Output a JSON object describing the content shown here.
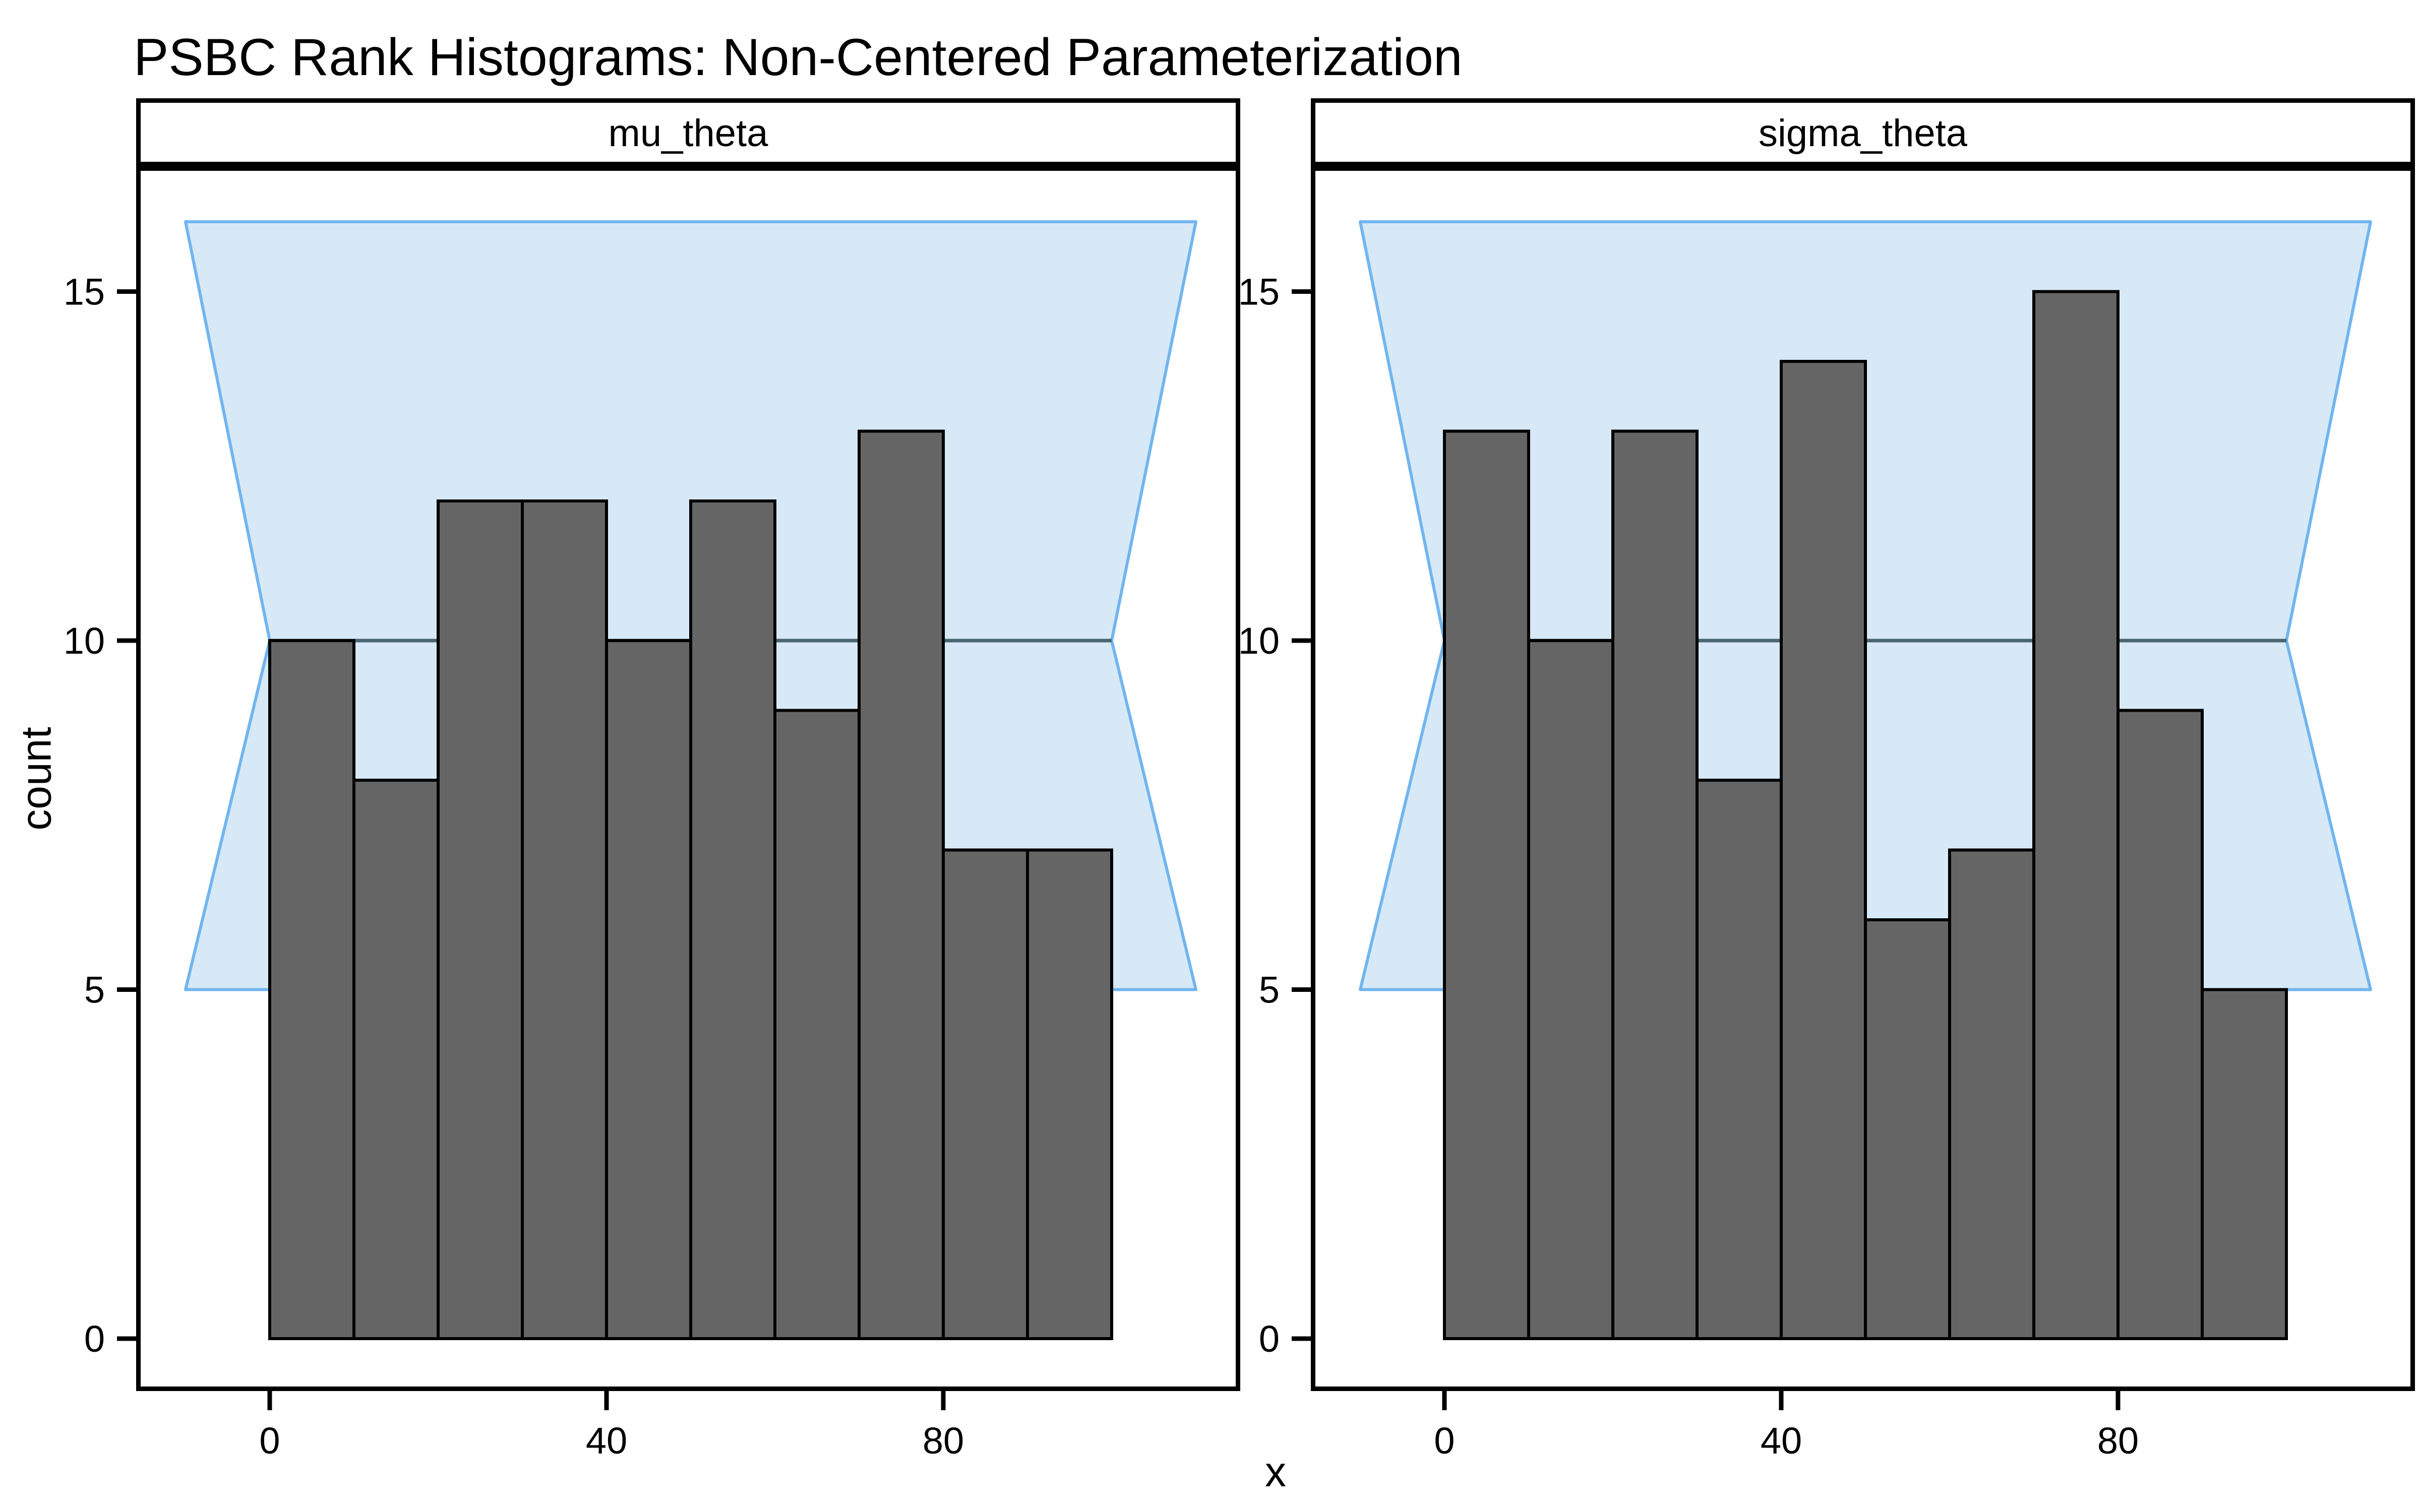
{
  "title": "PSBC Rank Histograms: Non-Centered Parameterization",
  "axes": {
    "x_title": "x",
    "y_title": "count",
    "x_ticks": [
      "0",
      "40",
      "80"
    ],
    "x_tick_values": [
      0,
      40,
      80
    ],
    "y_ticks": [
      "0",
      "5",
      "10",
      "15"
    ],
    "y_tick_values": [
      0,
      5,
      10,
      15
    ]
  },
  "chart_data": [
    {
      "type": "bar",
      "facet": "mu_theta",
      "bin_width": 10,
      "bin_starts": [
        0,
        10,
        20,
        30,
        40,
        50,
        60,
        70,
        80,
        90
      ],
      "counts": [
        10,
        8,
        12,
        12,
        10,
        12,
        9,
        13,
        7,
        7
      ],
      "x_range": [
        0,
        100
      ],
      "ylim": [
        0,
        16.8
      ],
      "band": {
        "upper": 16,
        "mid": 10,
        "lower": 5,
        "x_outer": [
          -10,
          110
        ],
        "x_inner": [
          0,
          100
        ]
      }
    },
    {
      "type": "bar",
      "facet": "sigma_theta",
      "bin_width": 10,
      "bin_starts": [
        0,
        10,
        20,
        30,
        40,
        50,
        60,
        70,
        80,
        90
      ],
      "counts": [
        13,
        10,
        13,
        8,
        14,
        6,
        7,
        15,
        9,
        5
      ],
      "x_range": [
        0,
        100
      ],
      "ylim": [
        0,
        16.8
      ],
      "band": {
        "upper": 16,
        "mid": 10,
        "lower": 5,
        "x_outer": [
          -10,
          110
        ],
        "x_inner": [
          0,
          100
        ]
      }
    }
  ],
  "colors": {
    "bar_fill": "#656565",
    "bar_stroke": "#000000",
    "band_fill": "#D7E9F6",
    "band_stroke": "#71B5EF",
    "band_midline": "#4A6572",
    "axis": "#000000"
  }
}
